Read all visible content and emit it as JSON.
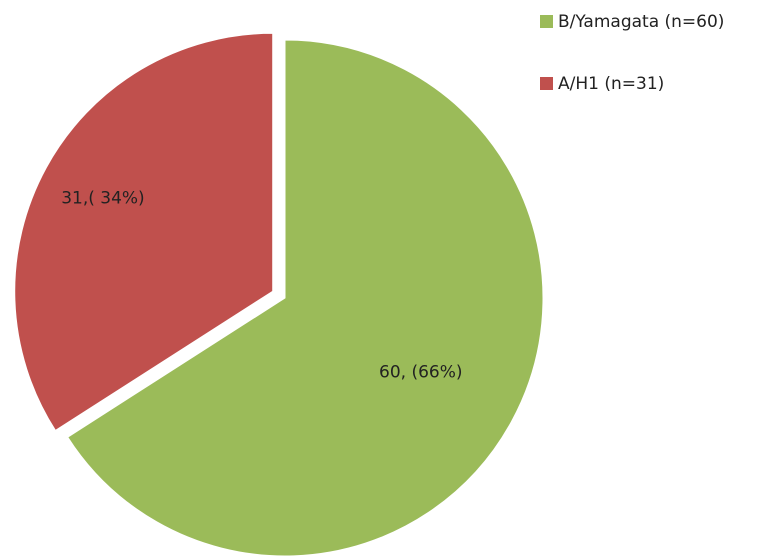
{
  "chart_data": {
    "type": "pie",
    "categories": [
      "B/Yamagata (n=60)",
      "A/H1 (n=31)"
    ],
    "values": [
      60,
      31
    ],
    "value_labels": [
      "60, (66%)",
      "31,( 34%)"
    ],
    "colors": [
      "#9bbb59",
      "#c0504d"
    ],
    "legend": "top-right"
  }
}
